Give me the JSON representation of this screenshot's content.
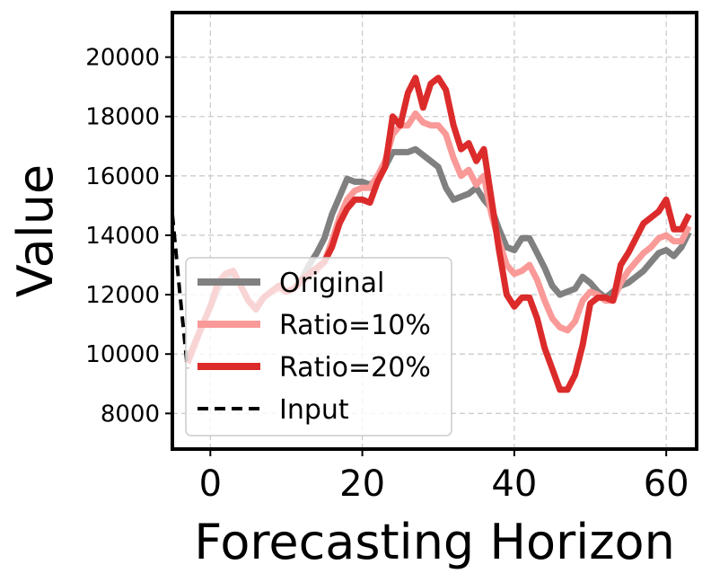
{
  "chart_data": {
    "type": "line",
    "title": "",
    "xlabel": "Forecasting Horizon",
    "ylabel": "Value",
    "xlim": [
      -5,
      64
    ],
    "ylim": [
      6800,
      21500
    ],
    "x_ticks": [
      0,
      20,
      40,
      60
    ],
    "y_ticks": [
      8000,
      10000,
      12000,
      14000,
      16000,
      18000,
      20000
    ],
    "x_tick_labels": [
      "0",
      "20",
      "40",
      "60"
    ],
    "y_tick_labels": [
      "8000",
      "10000",
      "12000",
      "14000",
      "16000",
      "18000",
      "20000"
    ],
    "grid": true,
    "legend_position": "lower-left",
    "series": [
      {
        "name": "Original",
        "color": "#808080",
        "style": "solid",
        "x": [
          -3,
          -2,
          -1,
          0,
          1,
          2,
          3,
          4,
          5,
          6,
          7,
          8,
          9,
          10,
          11,
          12,
          13,
          14,
          15,
          16,
          17,
          18,
          19,
          20,
          21,
          22,
          23,
          24,
          25,
          26,
          27,
          28,
          29,
          30,
          31,
          32,
          33,
          34,
          35,
          36,
          37,
          38,
          39,
          40,
          41,
          42,
          43,
          44,
          45,
          46,
          47,
          48,
          49,
          50,
          51,
          52,
          53,
          54,
          55,
          56,
          57,
          58,
          59,
          60,
          61,
          62,
          63
        ],
        "values": [
          9800,
          10400,
          11000,
          11600,
          12200,
          12600,
          12700,
          12300,
          11800,
          11600,
          11900,
          12100,
          12200,
          12100,
          12200,
          12500,
          13000,
          13400,
          13900,
          14700,
          15300,
          15900,
          15800,
          15800,
          15700,
          15900,
          16300,
          16800,
          16800,
          16800,
          16900,
          16700,
          16500,
          16300,
          15600,
          15200,
          15300,
          15400,
          15600,
          15200,
          14900,
          14200,
          13600,
          13500,
          13900,
          13900,
          13400,
          12900,
          12300,
          12000,
          12100,
          12200,
          12600,
          12400,
          12100,
          11900,
          12100,
          12300,
          12400,
          12600,
          12800,
          13100,
          13400,
          13500,
          13300,
          13600,
          14100
        ]
      },
      {
        "name": "Ratio=10%",
        "color": "#f99a98",
        "style": "solid",
        "x": [
          -3,
          -2,
          -1,
          0,
          1,
          2,
          3,
          4,
          5,
          6,
          7,
          8,
          9,
          10,
          11,
          12,
          13,
          14,
          15,
          16,
          17,
          18,
          19,
          20,
          21,
          22,
          23,
          24,
          25,
          26,
          27,
          28,
          29,
          30,
          31,
          32,
          33,
          34,
          35,
          36,
          37,
          38,
          39,
          40,
          41,
          42,
          43,
          44,
          45,
          46,
          47,
          48,
          49,
          50,
          51,
          52,
          53,
          54,
          55,
          56,
          57,
          58,
          59,
          60,
          61,
          62,
          63
        ],
        "values": [
          9700,
          10300,
          11000,
          11600,
          12300,
          12700,
          12800,
          12300,
          11800,
          11600,
          11900,
          12100,
          12200,
          12100,
          12200,
          12400,
          12600,
          12800,
          13100,
          13800,
          14600,
          15200,
          15500,
          15600,
          15600,
          16000,
          16500,
          17400,
          17700,
          17700,
          18100,
          17800,
          17700,
          17700,
          17400,
          16600,
          16000,
          16200,
          15700,
          16000,
          14700,
          13800,
          13000,
          12700,
          12800,
          13000,
          12500,
          11800,
          11200,
          10900,
          10800,
          11100,
          11800,
          12100,
          12000,
          11800,
          11800,
          12400,
          12800,
          13100,
          13400,
          13600,
          13900,
          14000,
          13800,
          13800,
          14300
        ]
      },
      {
        "name": "Ratio=20%",
        "color": "#dc2b2b",
        "style": "solid",
        "x": [
          -3,
          -2,
          -1,
          0,
          1,
          2,
          3,
          4,
          5,
          6,
          7,
          8,
          9,
          10,
          11,
          12,
          13,
          14,
          15,
          16,
          17,
          18,
          19,
          20,
          21,
          22,
          23,
          24,
          25,
          26,
          27,
          28,
          29,
          30,
          31,
          32,
          33,
          34,
          35,
          36,
          37,
          38,
          39,
          40,
          41,
          42,
          43,
          44,
          45,
          46,
          47,
          48,
          49,
          50,
          51,
          52,
          53,
          54,
          55,
          56,
          57,
          58,
          59,
          60,
          61,
          62,
          63
        ],
        "values": [
          9700,
          10400,
          11000,
          11600,
          12400,
          12700,
          12800,
          12300,
          11800,
          11500,
          11900,
          12100,
          12300,
          12100,
          12200,
          12500,
          12700,
          12900,
          13100,
          13600,
          14400,
          14900,
          15200,
          15200,
          15100,
          15800,
          16300,
          18000,
          17700,
          18800,
          19300,
          18300,
          19100,
          19300,
          18900,
          17700,
          16900,
          17100,
          16500,
          16900,
          15200,
          13500,
          12000,
          11600,
          11900,
          11900,
          11200,
          10200,
          9500,
          8800,
          8800,
          9300,
          10300,
          11700,
          11900,
          11900,
          11800,
          13000,
          13400,
          13900,
          14400,
          14600,
          14800,
          15200,
          14200,
          14200,
          14700
        ]
      },
      {
        "name": "Input",
        "color": "#000000",
        "style": "dashed",
        "x": [
          -5,
          -4,
          -3
        ],
        "values": [
          14700,
          12000,
          9500
        ]
      }
    ]
  }
}
